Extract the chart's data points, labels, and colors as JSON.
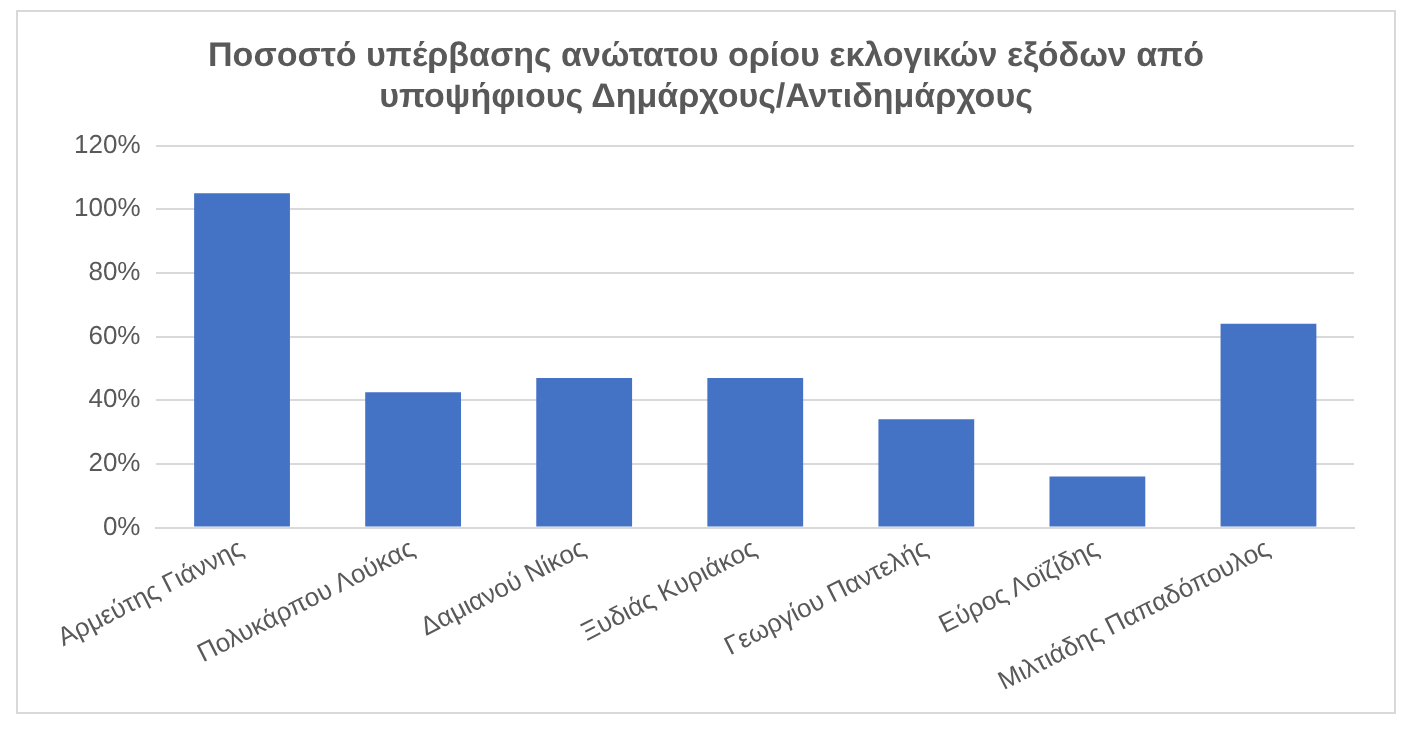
{
  "chart_data": {
    "type": "bar",
    "title": [
      "Ποσοστό υπέρβασης ανώτατου ορίου εκλογικών εξόδων από",
      "υποψήφιους Δημάρχους/Αντιδημάρχους"
    ],
    "categories": [
      "Αρμεύτης Γιάννης",
      "Πολυκάρπου Λούκας",
      "Δαμιανού Νίκος",
      "Ξυδιάς Κυριάκος",
      "Γεωργίου Παντελής",
      "Εύρος Λοϊζίδης",
      "Μιλτιάδης Παπαδόπουλος"
    ],
    "values": [
      105,
      42.5,
      47,
      47,
      34,
      16,
      64
    ],
    "color": "#4472c4",
    "ylim": [
      0,
      120
    ],
    "yticks": [
      {
        "value": 0,
        "label": "0%"
      },
      {
        "value": 20,
        "label": "20%"
      },
      {
        "value": 40,
        "label": "40%"
      },
      {
        "value": 60,
        "label": "60%"
      },
      {
        "value": 80,
        "label": "80%"
      },
      {
        "value": 100,
        "label": "100%"
      },
      {
        "value": 120,
        "label": "120%"
      }
    ],
    "grid": "y"
  }
}
